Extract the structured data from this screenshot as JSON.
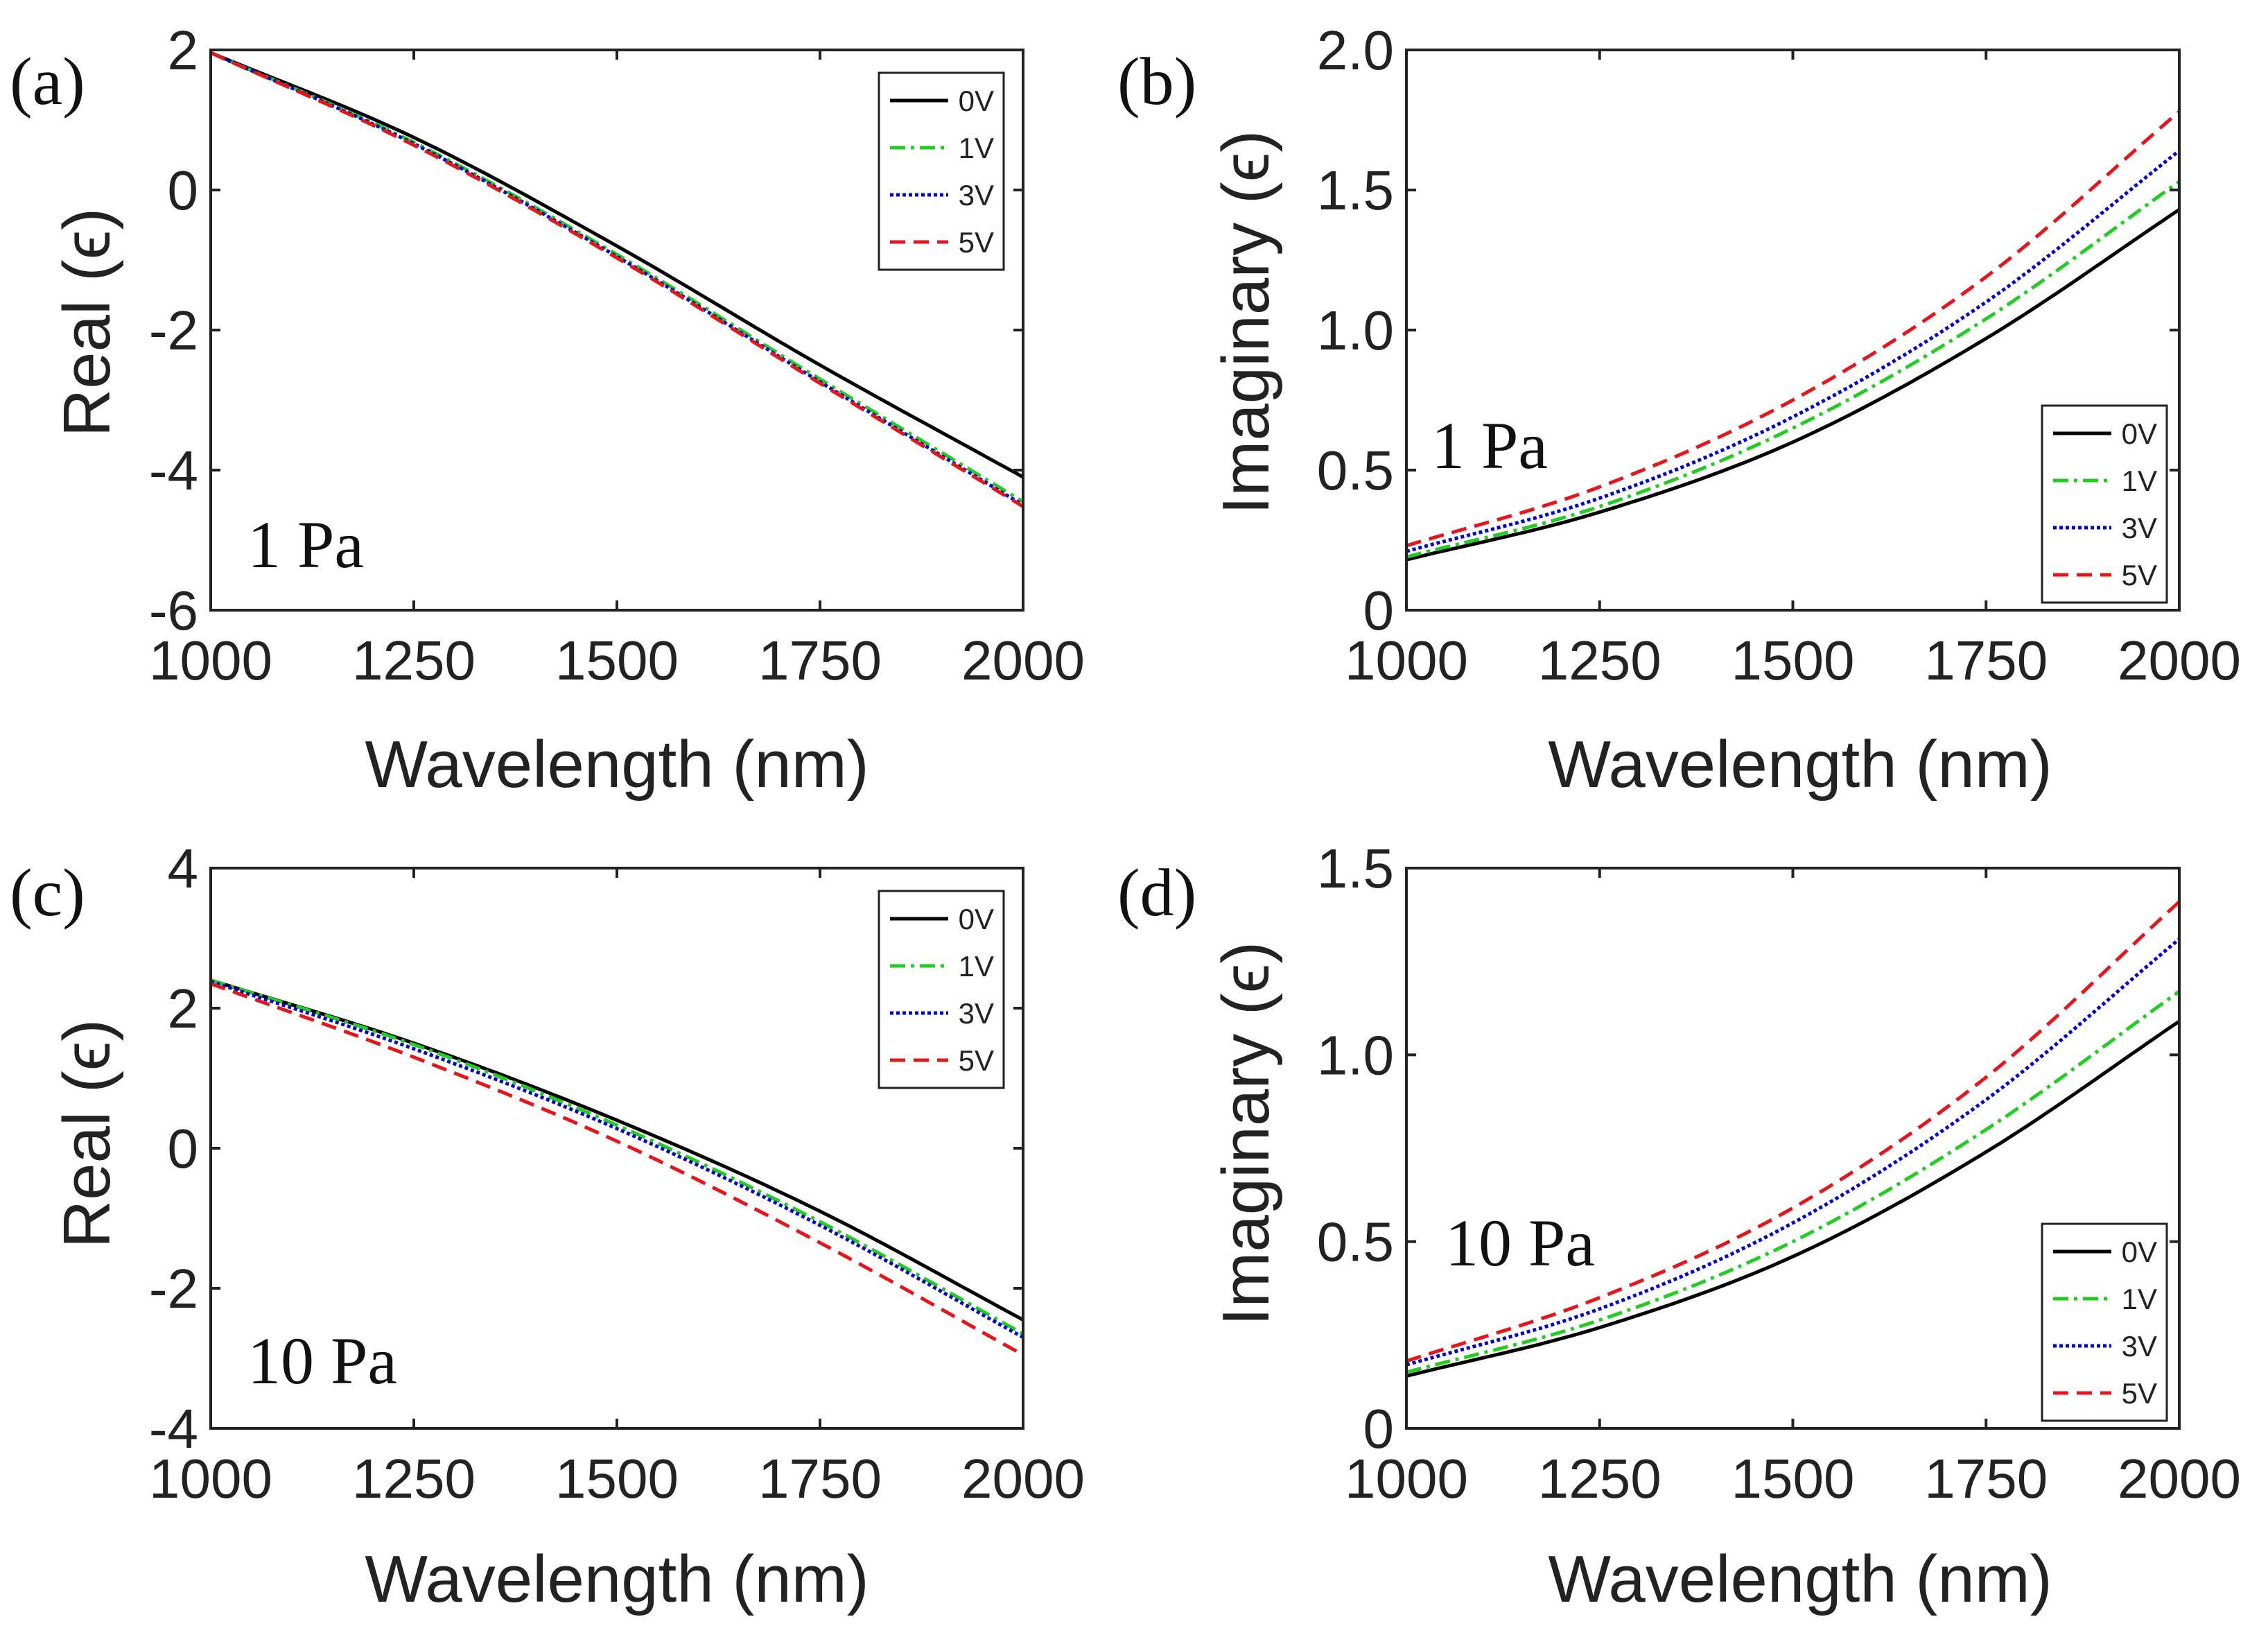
{
  "figure": {
    "background": "#ffffff"
  },
  "chart_data": [
    {
      "panel": "(a)",
      "type": "line",
      "xlabel": "Wavelength (nm)",
      "ylabel": "Real (ϵ)",
      "xlim": [
        1000,
        2000
      ],
      "ylim": [
        -6,
        2
      ],
      "xticks": [
        1000,
        1250,
        1500,
        1750,
        2000
      ],
      "xtick_labels": [
        "1000",
        "1250",
        "1500",
        "1750",
        "2000"
      ],
      "yticks": [
        -6,
        -4,
        -2,
        0,
        2
      ],
      "ytick_labels": [
        "-6",
        "-4",
        "-2",
        "0",
        "2"
      ],
      "annotation": "1 Pa",
      "legend": "top-right",
      "x": [
        1000,
        1250,
        1500,
        1750,
        2000
      ],
      "series": [
        {
          "name": "0V",
          "color": "#000000",
          "dash": "solid",
          "values": [
            1.96,
            0.75,
            -0.8,
            -2.5,
            -4.1
          ]
        },
        {
          "name": "1V",
          "color": "#22cc22",
          "dash": "dashdot",
          "values": [
            1.96,
            0.68,
            -0.92,
            -2.7,
            -4.45
          ]
        },
        {
          "name": "3V",
          "color": "#0000cc",
          "dash": "dotted",
          "values": [
            1.96,
            0.66,
            -0.95,
            -2.74,
            -4.5
          ]
        },
        {
          "name": "5V",
          "color": "#e8141c",
          "dash": "dashed",
          "values": [
            1.96,
            0.64,
            -0.97,
            -2.76,
            -4.52
          ]
        }
      ]
    },
    {
      "panel": "(b)",
      "type": "line",
      "xlabel": "Wavelength (nm)",
      "ylabel": "Imaginary (ϵ)",
      "xlim": [
        1000,
        2000
      ],
      "ylim": [
        0,
        2
      ],
      "xticks": [
        1000,
        1250,
        1500,
        1750,
        2000
      ],
      "xtick_labels": [
        "1000",
        "1250",
        "1500",
        "1750",
        "2000"
      ],
      "yticks": [
        0,
        0.5,
        1.0,
        1.5,
        2.0
      ],
      "ytick_labels": [
        "0",
        "0.5",
        "1.0",
        "1.5",
        "2.0"
      ],
      "annotation": "1 Pa",
      "legend": "bottom-right",
      "x": [
        1000,
        1250,
        1500,
        1750,
        2000
      ],
      "series": [
        {
          "name": "0V",
          "color": "#000000",
          "dash": "solid",
          "values": [
            0.18,
            0.35,
            0.6,
            0.97,
            1.43
          ]
        },
        {
          "name": "1V",
          "color": "#22cc22",
          "dash": "dashdot",
          "values": [
            0.19,
            0.37,
            0.65,
            1.04,
            1.53
          ]
        },
        {
          "name": "3V",
          "color": "#0000cc",
          "dash": "dotted",
          "values": [
            0.21,
            0.4,
            0.69,
            1.1,
            1.64
          ]
        },
        {
          "name": "5V",
          "color": "#e8141c",
          "dash": "dashed",
          "values": [
            0.23,
            0.44,
            0.75,
            1.19,
            1.78
          ]
        }
      ]
    },
    {
      "panel": "(c)",
      "type": "line",
      "xlabel": "Wavelength (nm)",
      "ylabel": "Real (ϵ)",
      "xlim": [
        1000,
        2000
      ],
      "ylim": [
        -4,
        4
      ],
      "xticks": [
        1000,
        1250,
        1500,
        1750,
        2000
      ],
      "xtick_labels": [
        "1000",
        "1250",
        "1500",
        "1750",
        "2000"
      ],
      "yticks": [
        -4,
        -2,
        0,
        2,
        4
      ],
      "ytick_labels": [
        "-4",
        "-2",
        "0",
        "2",
        "4"
      ],
      "annotation": "10 Pa",
      "legend": "top-right",
      "x": [
        1000,
        1250,
        1500,
        1750,
        2000
      ],
      "series": [
        {
          "name": "0V",
          "color": "#000000",
          "dash": "solid",
          "values": [
            2.4,
            1.5,
            0.4,
            -0.9,
            -2.45
          ]
        },
        {
          "name": "1V",
          "color": "#22cc22",
          "dash": "dashdot",
          "values": [
            2.4,
            1.48,
            0.33,
            -1.05,
            -2.65
          ]
        },
        {
          "name": "3V",
          "color": "#0000cc",
          "dash": "dotted",
          "values": [
            2.38,
            1.42,
            0.28,
            -1.1,
            -2.7
          ]
        },
        {
          "name": "5V",
          "color": "#e8141c",
          "dash": "dashed",
          "values": [
            2.35,
            1.3,
            0.1,
            -1.35,
            -2.95
          ]
        }
      ]
    },
    {
      "panel": "(d)",
      "type": "line",
      "xlabel": "Wavelength (nm)",
      "ylabel": "Imaginary (ϵ)",
      "xlim": [
        1000,
        2000
      ],
      "ylim": [
        0,
        1.5
      ],
      "xticks": [
        1000,
        1250,
        1500,
        1750,
        2000
      ],
      "xtick_labels": [
        "1000",
        "1250",
        "1500",
        "1750",
        "2000"
      ],
      "yticks": [
        0,
        0.5,
        1.0,
        1.5
      ],
      "ytick_labels": [
        "0",
        "0.5",
        "1.0",
        "1.5"
      ],
      "annotation": "10 Pa",
      "legend": "bottom-right",
      "x": [
        1000,
        1250,
        1500,
        1750,
        2000
      ],
      "series": [
        {
          "name": "0V",
          "color": "#000000",
          "dash": "solid",
          "values": [
            0.14,
            0.27,
            0.46,
            0.74,
            1.09
          ]
        },
        {
          "name": "1V",
          "color": "#22cc22",
          "dash": "dashdot",
          "values": [
            0.15,
            0.29,
            0.5,
            0.8,
            1.17
          ]
        },
        {
          "name": "3V",
          "color": "#0000cc",
          "dash": "dotted",
          "values": [
            0.17,
            0.32,
            0.55,
            0.88,
            1.31
          ]
        },
        {
          "name": "5V",
          "color": "#e8141c",
          "dash": "dashed",
          "values": [
            0.18,
            0.35,
            0.59,
            0.94,
            1.41
          ]
        }
      ]
    }
  ]
}
